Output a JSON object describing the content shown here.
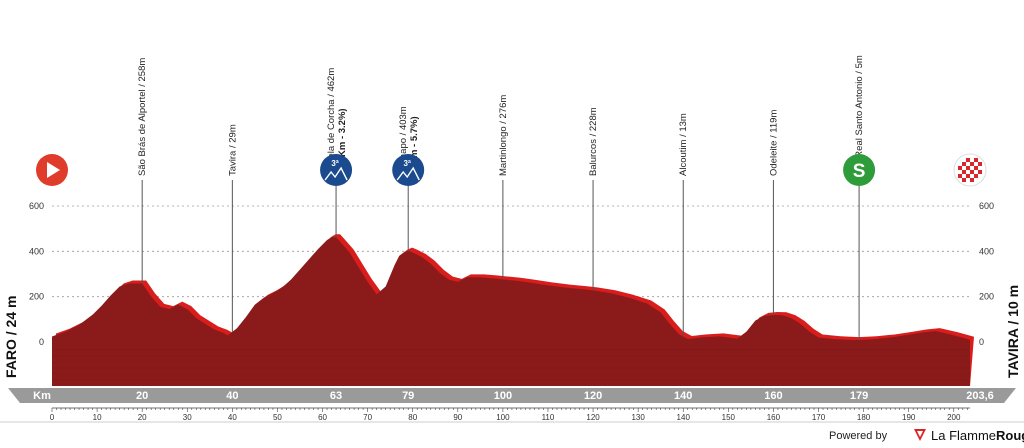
{
  "chart_data": {
    "type": "area",
    "title": "",
    "xlabel": "Km",
    "ylabel": "",
    "xlim": [
      0,
      203.6
    ],
    "ylim": [
      -100,
      650
    ],
    "y_ticks": [
      0,
      200,
      400,
      600
    ],
    "y_tick_labels": [
      "0",
      "200",
      "400",
      "600"
    ],
    "x_ticks": [
      0,
      10,
      20,
      30,
      40,
      50,
      60,
      70,
      80,
      90,
      100,
      110,
      120,
      130,
      140,
      150,
      160,
      170,
      180,
      190,
      200
    ],
    "x_tick_labels": [
      "0",
      "10",
      "20",
      "30",
      "40",
      "50",
      "60",
      "70",
      "80",
      "90",
      "100",
      "110",
      "120",
      "130",
      "140",
      "150",
      "160",
      "170",
      "180",
      "190",
      "200"
    ],
    "band_label": "Km",
    "band_marks": [
      {
        "km": 20,
        "label": "20"
      },
      {
        "km": 40,
        "label": "40"
      },
      {
        "km": 63,
        "label": "63"
      },
      {
        "km": 79,
        "label": "79"
      },
      {
        "km": 100,
        "label": "100"
      },
      {
        "km": 120,
        "label": "120"
      },
      {
        "km": 140,
        "label": "140"
      },
      {
        "km": 160,
        "label": "160"
      },
      {
        "km": 179,
        "label": "179"
      },
      {
        "km": 203.6,
        "label": "203,6"
      }
    ],
    "start_label": "FARO / 24 m",
    "finish_label": "TAVIRA / 10 m",
    "profile": {
      "x": [
        0,
        3,
        6,
        9,
        11,
        13,
        15,
        17,
        19,
        20,
        22,
        24,
        26,
        28,
        30,
        32,
        34,
        36,
        38,
        39,
        41,
        43,
        45,
        47,
        49,
        51,
        53,
        55,
        57,
        59,
        61,
        62,
        63,
        64,
        66,
        68,
        70,
        72,
        74,
        76,
        77,
        78,
        79,
        80,
        82,
        84,
        86,
        88,
        90,
        92,
        95,
        98,
        100,
        103,
        106,
        110,
        114,
        118,
        120,
        124,
        128,
        132,
        135,
        137,
        139,
        141,
        144,
        148,
        152,
        154,
        156,
        158,
        160,
        162,
        164,
        166,
        168,
        170,
        174,
        178,
        182,
        186,
        190,
        193,
        196,
        200,
        203.6
      ],
      "y": [
        24,
        45,
        75,
        120,
        160,
        205,
        245,
        258,
        258,
        258,
        200,
        155,
        145,
        165,
        145,
        105,
        80,
        55,
        40,
        29,
        60,
        110,
        165,
        195,
        215,
        240,
        275,
        320,
        365,
        410,
        450,
        462,
        462,
        440,
        395,
        330,
        265,
        210,
        245,
        340,
        380,
        395,
        403,
        395,
        375,
        345,
        305,
        275,
        265,
        285,
        285,
        280,
        276,
        270,
        262,
        250,
        240,
        232,
        228,
        215,
        195,
        170,
        130,
        80,
        35,
        13,
        20,
        25,
        15,
        45,
        95,
        115,
        119,
        118,
        105,
        80,
        45,
        20,
        12,
        8,
        12,
        20,
        32,
        42,
        48,
        30,
        10
      ]
    },
    "waypoints": [
      {
        "km": 0,
        "label": "",
        "marker": "start"
      },
      {
        "km": 20,
        "label": "São Brás de Alportel / 258m"
      },
      {
        "km": 40,
        "label": "Tavira / 29m"
      },
      {
        "km": 63,
        "label": "Portela de Corcha / 462m",
        "sub": "(7.4 Km - 3.2%)",
        "marker": "cat3",
        "marker_text": "3ª"
      },
      {
        "km": 79,
        "label": "Cachapo / 403m",
        "sub": "(4 Km - 5.7%)",
        "marker": "cat3",
        "marker_text": "3ª"
      },
      {
        "km": 100,
        "label": "Martinlongo / 276m"
      },
      {
        "km": 120,
        "label": "Balurcos / 228m"
      },
      {
        "km": 140,
        "label": "Alcoutim / 13m"
      },
      {
        "km": 160,
        "label": "Odeleite / 119m"
      },
      {
        "km": 179,
        "label": "Vila Real Santo Antonio / 5m",
        "marker": "sprint",
        "marker_text": "S"
      },
      {
        "km": 203.6,
        "label": "",
        "marker": "finish"
      }
    ],
    "colors": {
      "profile_fill": "#8b1a1a",
      "profile_light": "#d91c1c",
      "band": "#9a9a9a",
      "climb_marker": "#1c4a8f",
      "sprint_marker": "#2e9c3a",
      "start_marker": "#e03c2c",
      "finish_check": "#d9262b"
    },
    "legend": "none",
    "grid": true
  },
  "footer": {
    "powered_by": "Powered by",
    "brand_normal": "La Flamme",
    "brand_bold": "Rouge"
  }
}
